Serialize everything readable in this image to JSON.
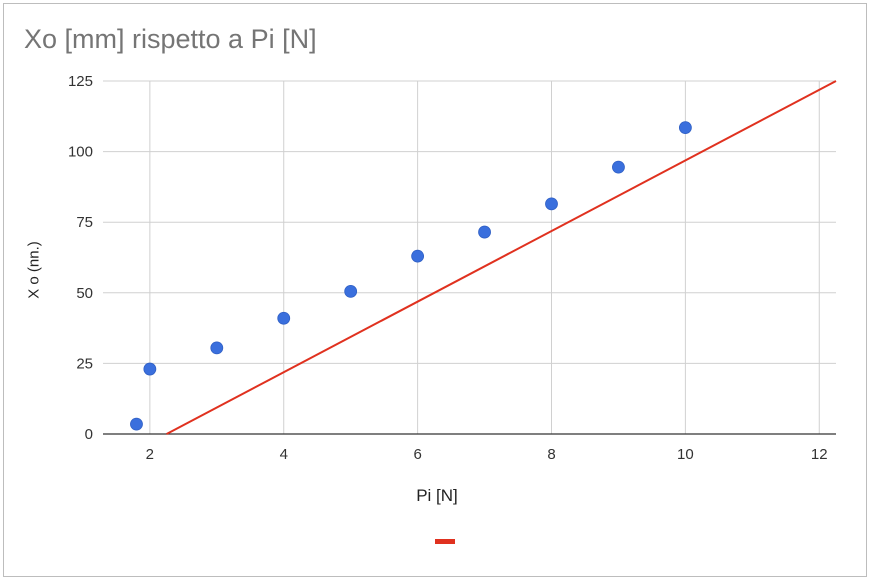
{
  "chart_data": {
    "type": "scatter",
    "title": "Xo [mm] rispetto a Pi [N]",
    "xlabel": "Pi [N]",
    "ylabel": "X o (nn.)",
    "xlim": [
      1.3,
      12.25
    ],
    "ylim": [
      0,
      125
    ],
    "x_ticks": [
      2,
      4,
      6,
      8,
      10,
      12
    ],
    "y_ticks": [
      0,
      25,
      50,
      75,
      100,
      125
    ],
    "grid": true,
    "legend_position": "bottom",
    "series": [
      {
        "kind": "scatter",
        "color": "#3a6fdd",
        "points": [
          {
            "x": 1.8,
            "y": 3.5
          },
          {
            "x": 2,
            "y": 23
          },
          {
            "x": 3,
            "y": 30.5
          },
          {
            "x": 4,
            "y": 41
          },
          {
            "x": 5,
            "y": 50.5
          },
          {
            "x": 6,
            "y": 63
          },
          {
            "x": 7,
            "y": 71.5
          },
          {
            "x": 8,
            "y": 81.5
          },
          {
            "x": 9,
            "y": 94.5
          },
          {
            "x": 10,
            "y": 108.5
          }
        ]
      },
      {
        "kind": "line",
        "color": "#e0311f",
        "points": [
          {
            "x": 2.25,
            "y": 0
          },
          {
            "x": 12.25,
            "y": 125
          }
        ]
      }
    ]
  }
}
